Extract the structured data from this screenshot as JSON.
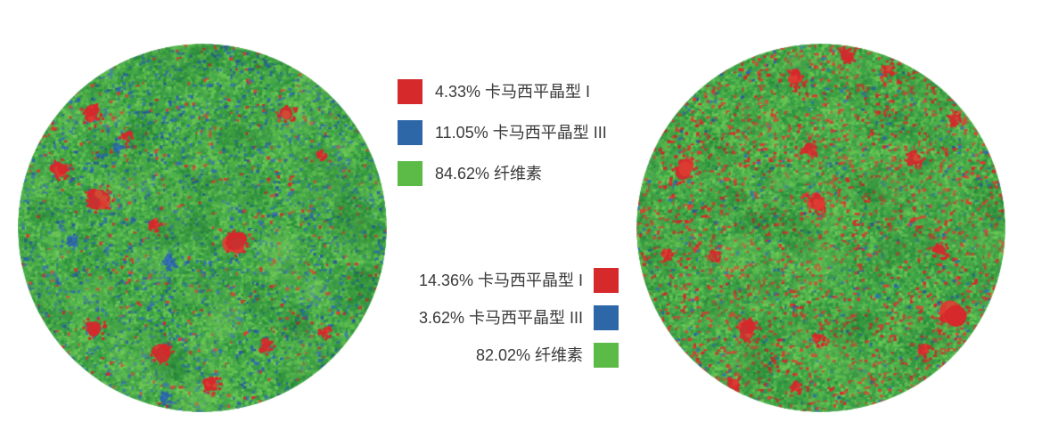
{
  "page": {
    "background": "#ffffff"
  },
  "colors": {
    "crystal_form_1_red": "#d5292c",
    "crystal_form_3_blue": "#2d67a8",
    "cellulose_green": "#5cba47",
    "legend_text": "#3a3a3a"
  },
  "chart_data": {
    "type": "heatmap",
    "maps": [
      {
        "name": "left-sample-map",
        "legend_position": "upper-center, swatches left of text",
        "legend": [
          {
            "text": "4.33% 卡马西平晶型 I",
            "pct": 4.33,
            "label": "卡马西平晶型 I",
            "color": "#d5292c"
          },
          {
            "text": "11.05% 卡马西平晶型 III",
            "pct": 11.05,
            "label": "卡马西平晶型 III",
            "color": "#2d67a8"
          },
          {
            "text": "84.62% 纤维素",
            "pct": 84.62,
            "label": "纤维素",
            "color": "#5cba47"
          }
        ]
      },
      {
        "name": "right-sample-map",
        "legend_position": "lower-center, swatches right of text",
        "legend": [
          {
            "text": "14.36% 卡马西平晶型 I",
            "pct": 14.36,
            "label": "卡马西平晶型 I",
            "color": "#d5292c"
          },
          {
            "text": "3.62% 卡马西平晶型 III",
            "pct": 3.62,
            "label": "卡马西平晶型 III",
            "color": "#2d67a8"
          },
          {
            "text": "82.02% 纤维素",
            "pct": 82.02,
            "label": "纤维素",
            "color": "#5cba47"
          }
        ]
      }
    ]
  }
}
